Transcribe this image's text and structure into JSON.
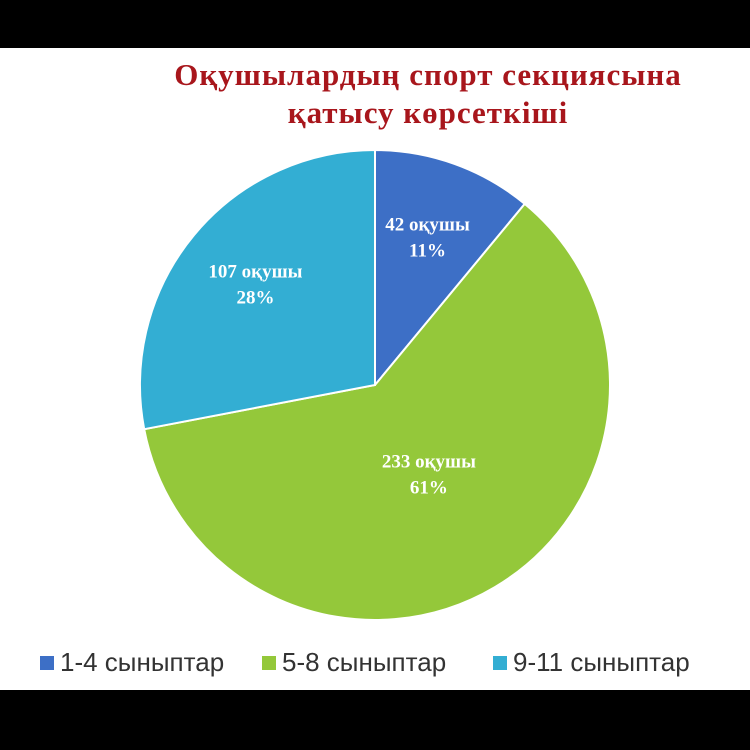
{
  "chart_data": {
    "type": "pie",
    "title": [
      "Оқушылардың спорт секциясына",
      "қатысу көрсеткіші"
    ],
    "categories": [
      "1-4 сыныптар",
      "5-8 сыныптар",
      "9-11 сыныптар"
    ],
    "values": [
      42,
      233,
      107
    ],
    "value_labels": [
      "42 оқушы",
      "233 оқушы",
      "107 оқушы"
    ],
    "percents": [
      11,
      61,
      28
    ],
    "percent_labels": [
      "11%",
      "61%",
      "28%"
    ],
    "colors": [
      "#3d6fc6",
      "#94c83a",
      "#33aed3"
    ],
    "legend": "bottom"
  }
}
